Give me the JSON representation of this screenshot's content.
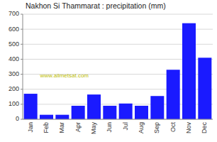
{
  "chart_data": {
    "type": "bar",
    "title": "Nakhon Si Thammarat : precipitation (mm)",
    "categories": [
      "Jan",
      "Feb",
      "Mar",
      "Apr",
      "May",
      "Jun",
      "Jul",
      "Aug",
      "Sep",
      "Oct",
      "Nov",
      "Dec"
    ],
    "values": [
      170,
      30,
      30,
      90,
      165,
      90,
      105,
      90,
      155,
      330,
      640,
      410
    ],
    "color": "#1a1aff",
    "ylim": [
      0,
      700
    ],
    "yticks": [
      0,
      100,
      200,
      300,
      400,
      500,
      600,
      700
    ],
    "grid": true,
    "annotation": "www.allmetsat.com"
  }
}
